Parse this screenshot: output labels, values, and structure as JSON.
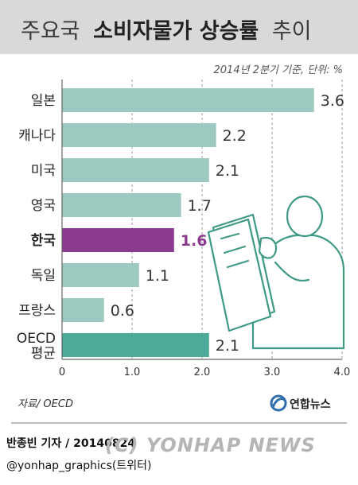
{
  "title": {
    "light": "주요국",
    "bold": "소비자물가 상승률",
    "tail": "추이"
  },
  "subtitle": "2014년 2분기 기준, 단위: %",
  "source": "자료/ OECD",
  "brand": "연합뉴스",
  "credits": {
    "reporter": "반종빈 기자 / 20140824",
    "handle": "@yonhap_graphics(트위터)"
  },
  "watermark": "(C) YONHAP NEWS",
  "colors": {
    "bar": "#9cc9c0",
    "highlight": "#8b3b8f",
    "oecd": "#4cab98",
    "title_band": "#d9d9d9",
    "illustration_stroke": "#3f9a85",
    "illustration_fill": "#ffffff"
  },
  "chart_data": {
    "type": "bar",
    "orientation": "horizontal",
    "categories": [
      "일본",
      "캐나다",
      "미국",
      "영국",
      "한국",
      "독일",
      "프랑스",
      "OECD\n평균"
    ],
    "values": [
      3.6,
      2.2,
      2.1,
      1.7,
      1.6,
      1.1,
      0.6,
      2.1
    ],
    "value_labels": [
      "3.6",
      "2.2",
      "2.1",
      "1.7",
      "1.6",
      "1.1",
      "0.6",
      "2.1"
    ],
    "highlight_index": 4,
    "xlim": [
      0,
      4.0
    ],
    "xticks": [
      "0",
      "1.0",
      "2.0",
      "3.0",
      "4.0"
    ],
    "grid": "vertical-dashed"
  }
}
